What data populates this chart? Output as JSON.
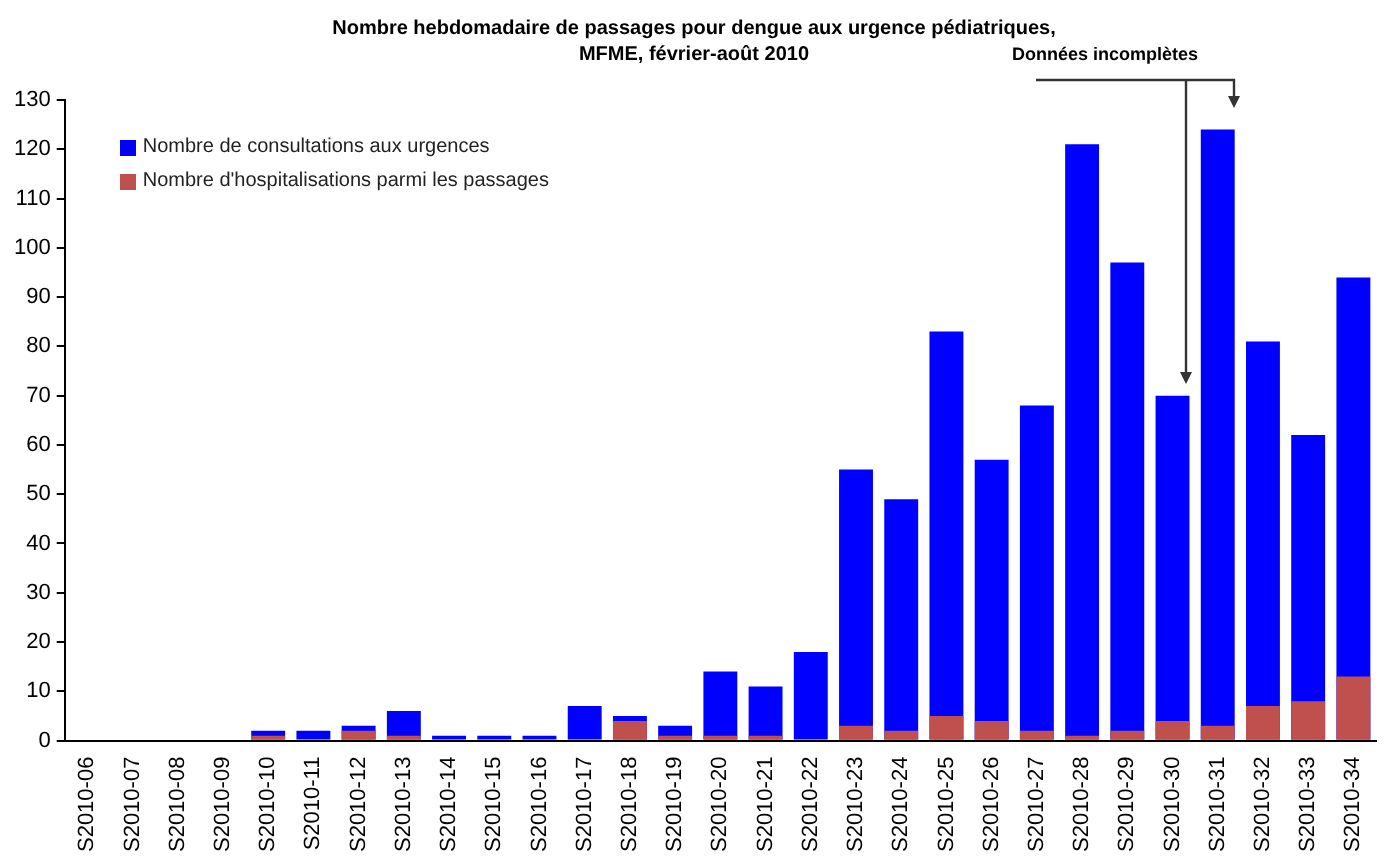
{
  "chart_data": {
    "type": "bar",
    "title": "Nombre hebdomadaire de passages pour dengue aux urgence pédiatriques,\nMFME, février-août 2010",
    "categories": [
      "S2010-06",
      "S2010-07",
      "S2010-08",
      "S2010-09",
      "S2010-10",
      "S2010-11",
      "S2010-12",
      "S2010-13",
      "S2010-14",
      "S2010-15",
      "S2010-16",
      "S2010-17",
      "S2010-18",
      "S2010-19",
      "S2010-20",
      "S2010-21",
      "S2010-22",
      "S2010-23",
      "S2010-24",
      "S2010-25",
      "S2010-26",
      "S2010-27",
      "S2010-28",
      "S2010-29",
      "S2010-30",
      "S2010-31",
      "S2010-32",
      "S2010-33",
      "S2010-34"
    ],
    "series": [
      {
        "name": "Nombre de consultations aux urgences",
        "color": "#0000ff",
        "values": [
          0,
          0,
          0,
          0,
          2,
          2,
          3,
          6,
          1,
          1,
          1,
          7,
          5,
          3,
          14,
          11,
          18,
          55,
          49,
          83,
          57,
          68,
          121,
          97,
          70,
          124,
          81,
          62,
          94
        ]
      },
      {
        "name": "Nombre d'hospitalisations parmi les passages",
        "color": "#c0504d",
        "values": [
          0,
          0,
          0,
          0,
          1,
          0,
          2,
          1,
          0,
          0,
          0,
          0,
          4,
          1,
          1,
          1,
          0,
          3,
          2,
          5,
          4,
          2,
          1,
          2,
          4,
          3,
          7,
          8,
          13
        ]
      }
    ],
    "ylim": [
      0,
      130
    ],
    "yticks": [
      0,
      10,
      20,
      30,
      40,
      50,
      60,
      70,
      80,
      90,
      100,
      110,
      120,
      130
    ],
    "grid": false,
    "legend": "top left",
    "annotations": [
      "Données incomplètes"
    ]
  }
}
